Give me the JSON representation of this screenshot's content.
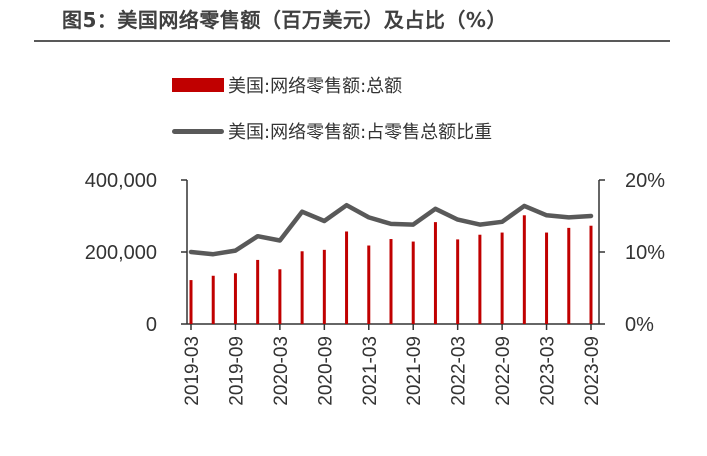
{
  "header": {
    "title": "图5：美国网络零售额（百万美元）及占比（%）"
  },
  "colors": {
    "bar": "#C00000",
    "line": "#595959",
    "axis": "#333333"
  },
  "chart_data": {
    "type": "bar",
    "title": "图5：美国网络零售额（百万美元）及占比（%）",
    "categories": [
      "2019-03",
      "2019-06",
      "2019-09",
      "2019-12",
      "2020-03",
      "2020-06",
      "2020-09",
      "2020-12",
      "2021-03",
      "2021-06",
      "2021-09",
      "2021-12",
      "2022-03",
      "2022-06",
      "2022-09",
      "2022-12",
      "2023-03",
      "2023-06",
      "2023-09"
    ],
    "x_tick_labels": [
      "2019-03",
      "2019-09",
      "2020-03",
      "2020-09",
      "2021-03",
      "2021-09",
      "2022-03",
      "2022-09",
      "2023-03",
      "2023-09"
    ],
    "series": [
      {
        "name": "美国:网络零售额:总额",
        "type": "bar",
        "axis": "left",
        "values": [
          122000,
          134000,
          141000,
          178000,
          152000,
          202000,
          206000,
          257000,
          218000,
          236000,
          229000,
          283000,
          235000,
          248000,
          254000,
          302000,
          254000,
          267000,
          273000
        ]
      },
      {
        "name": "美国:网络零售额:占零售总额比重",
        "type": "line",
        "axis": "right",
        "values": [
          10.0,
          9.7,
          10.2,
          12.2,
          11.6,
          15.6,
          14.3,
          16.5,
          14.8,
          13.9,
          13.8,
          16.0,
          14.5,
          13.8,
          14.2,
          16.4,
          15.1,
          14.8,
          15.0
        ]
      }
    ],
    "y_left": {
      "ylim": [
        0,
        400000
      ],
      "ticks": [
        "0",
        "200,000",
        "400,000"
      ]
    },
    "y_right": {
      "ylim": [
        0,
        20
      ],
      "ticks": [
        "0%",
        "10%",
        "20%"
      ]
    },
    "legend_position": "top",
    "grid": false
  }
}
